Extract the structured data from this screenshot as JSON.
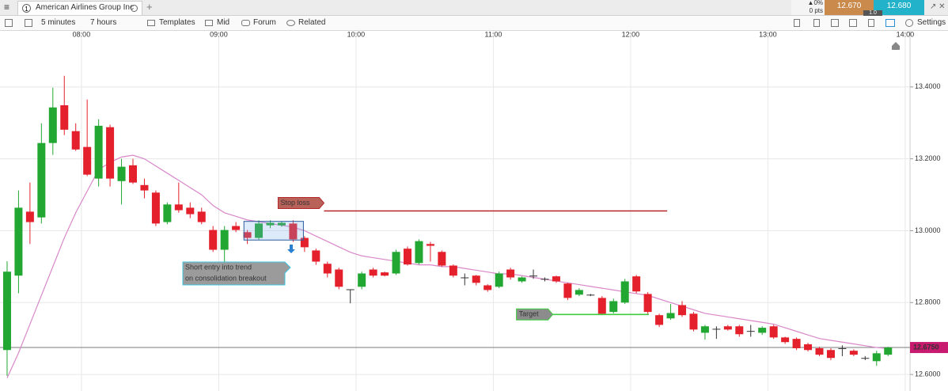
{
  "header": {
    "tab_number": "1",
    "tab_title": "American Airlines Group Inc",
    "add_tab": "+"
  },
  "quote": {
    "change": "0%",
    "points": "0 pts",
    "sell": "12.670",
    "buy": "12.680",
    "spread": "1.0"
  },
  "toolbar": {
    "interval": "5 minutes",
    "range": "7 hours",
    "templates": "Templates",
    "price_type": "Mid",
    "forum": "Forum",
    "related": "Related",
    "settings": "Settings"
  },
  "chart_data": {
    "type": "candlestick",
    "xlim": [
      444.4,
      842.1
    ],
    "xticks": [
      {
        "value": 480,
        "label": "08:00"
      },
      {
        "value": 540,
        "label": "09:00"
      },
      {
        "value": 600,
        "label": "10:00"
      },
      {
        "value": 660,
        "label": "11:00"
      },
      {
        "value": 720,
        "label": "12:00"
      },
      {
        "value": 780,
        "label": "13:00"
      },
      {
        "value": 840,
        "label": "14:00"
      }
    ],
    "ylim": [
      12.554,
      13.556
    ],
    "yticks": [
      {
        "value": 12.6,
        "label": "12.6000"
      },
      {
        "value": 12.8,
        "label": "12.8000"
      },
      {
        "value": 13.0,
        "label": "13.0000"
      },
      {
        "value": 13.2,
        "label": "13.2000"
      },
      {
        "value": 13.4,
        "label": "13.4000"
      }
    ],
    "grid": true,
    "up_color": "#22a732",
    "down_color": "#e3202b",
    "x": [
      445,
      450,
      455,
      460,
      465,
      470,
      475,
      480,
      485,
      490,
      495,
      500,
      505,
      510,
      515,
      520,
      525,
      530,
      535,
      540,
      545,
      550,
      555,
      560,
      565,
      570,
      575,
      580,
      585,
      590,
      595,
      600,
      605,
      610,
      615,
      620,
      625,
      630,
      635,
      640,
      645,
      650,
      655,
      660,
      665,
      670,
      675,
      680,
      685,
      690,
      695,
      700,
      705,
      710,
      715,
      720,
      725,
      730,
      735,
      740,
      745,
      750,
      755,
      760,
      765,
      770,
      775,
      780,
      785,
      790,
      795,
      800,
      805,
      810,
      815,
      820,
      825,
      830
    ],
    "open": [
      12.668,
      12.875,
      13.053,
      13.037,
      13.244,
      13.349,
      13.277,
      13.233,
      13.145,
      13.288,
      13.138,
      13.182,
      13.127,
      13.106,
      13.024,
      13.073,
      13.064,
      13.053,
      13.002,
      12.947,
      13.013,
      12.996,
      12.98,
      13.015,
      13.015,
      13.02,
      12.98,
      12.945,
      12.908,
      12.892,
      12.835,
      12.844,
      12.892,
      12.884,
      12.881,
      12.95,
      12.91,
      12.963,
      12.941,
      12.903,
      12.87,
      12.875,
      12.848,
      12.844,
      12.892,
      12.859,
      12.875,
      12.866,
      12.873,
      12.853,
      12.822,
      12.822,
      12.813,
      12.774,
      12.8,
      12.873,
      12.824,
      12.765,
      12.756,
      12.793,
      12.769,
      12.716,
      12.727,
      12.734,
      12.734,
      12.721,
      12.716,
      12.734,
      12.703,
      12.699,
      12.684,
      12.673,
      12.668,
      12.673,
      12.666,
      12.646,
      12.637,
      12.655
    ],
    "high": [
      12.915,
      13.112,
      13.134,
      13.299,
      13.398,
      13.431,
      13.299,
      13.365,
      13.31,
      13.295,
      13.2,
      13.2,
      13.145,
      13.112,
      13.079,
      13.134,
      13.079,
      13.064,
      13.013,
      13.013,
      13.024,
      13.002,
      13.029,
      13.029,
      13.026,
      13.029,
      12.985,
      12.95,
      12.914,
      12.897,
      12.837,
      12.886,
      12.897,
      12.886,
      12.947,
      12.956,
      12.976,
      12.969,
      12.945,
      12.906,
      12.881,
      12.877,
      12.851,
      12.886,
      12.897,
      12.873,
      12.892,
      12.87,
      12.875,
      12.855,
      12.84,
      12.824,
      12.818,
      12.811,
      12.866,
      12.877,
      12.829,
      12.769,
      12.796,
      12.804,
      12.774,
      12.738,
      12.734,
      12.738,
      12.738,
      12.738,
      12.734,
      12.738,
      12.705,
      12.703,
      12.688,
      12.677,
      12.673,
      12.681,
      12.67,
      12.651,
      12.666,
      12.677
    ],
    "low": [
      12.596,
      12.826,
      12.963,
      13.02,
      13.211,
      13.266,
      13.222,
      13.152,
      13.123,
      13.123,
      13.073,
      13.13,
      13.09,
      13.013,
      13.018,
      13.05,
      13.035,
      13.018,
      12.941,
      12.914,
      12.996,
      12.963,
      12.975,
      13.007,
      13.011,
      12.969,
      12.941,
      12.905,
      12.87,
      12.837,
      12.798,
      12.837,
      12.87,
      12.873,
      12.877,
      12.903,
      12.906,
      12.914,
      12.9,
      12.87,
      12.848,
      12.848,
      12.83,
      12.84,
      12.864,
      12.855,
      12.866,
      12.859,
      12.855,
      12.807,
      12.818,
      12.818,
      12.765,
      12.77,
      12.796,
      12.826,
      12.769,
      12.732,
      12.752,
      12.76,
      12.72,
      12.697,
      12.699,
      12.722,
      12.705,
      12.705,
      12.71,
      12.699,
      12.685,
      12.668,
      12.664,
      12.651,
      12.64,
      12.651,
      12.651,
      12.64,
      12.624,
      12.651
    ],
    "close": [
      12.886,
      13.064,
      13.024,
      13.244,
      13.343,
      13.281,
      13.226,
      13.156,
      13.292,
      13.145,
      13.178,
      13.134,
      13.112,
      13.02,
      13.073,
      13.057,
      13.046,
      13.024,
      12.947,
      13.002,
      13.002,
      12.98,
      13.02,
      13.022,
      13.022,
      12.976,
      12.954,
      12.914,
      12.881,
      12.844,
      12.837,
      12.881,
      12.875,
      12.875,
      12.941,
      12.906,
      12.971,
      12.958,
      12.903,
      12.875,
      12.868,
      12.855,
      12.835,
      12.881,
      12.87,
      12.87,
      12.873,
      12.864,
      12.859,
      12.813,
      12.835,
      12.82,
      12.769,
      12.804,
      12.859,
      12.831,
      12.774,
      12.738,
      12.771,
      12.765,
      12.725,
      12.734,
      12.725,
      12.725,
      12.712,
      12.719,
      12.73,
      12.703,
      12.69,
      12.673,
      12.668,
      12.655,
      12.646,
      12.671,
      12.655,
      12.644,
      12.659,
      12.675
    ],
    "moving_average": {
      "color": "#d987c9",
      "values": [
        12.59,
        12.66,
        12.74,
        12.82,
        12.9,
        12.98,
        13.05,
        13.11,
        13.17,
        13.19,
        13.205,
        13.21,
        13.2,
        13.18,
        13.16,
        13.14,
        13.12,
        13.1,
        13.07,
        13.05,
        13.04,
        13.03,
        13.025,
        13.02,
        13.015,
        13.01,
        13.0,
        12.985,
        12.97,
        12.955,
        12.94,
        12.93,
        12.925,
        12.92,
        12.915,
        12.91,
        12.905,
        12.905,
        12.9,
        12.9,
        12.895,
        12.89,
        12.885,
        12.88,
        12.88,
        12.875,
        12.87,
        12.865,
        12.86,
        12.855,
        12.85,
        12.845,
        12.84,
        12.835,
        12.83,
        12.825,
        12.82,
        12.81,
        12.8,
        12.79,
        12.78,
        12.77,
        12.765,
        12.76,
        12.755,
        12.75,
        12.745,
        12.74,
        12.73,
        12.72,
        12.71,
        12.7,
        12.695,
        12.69,
        12.685,
        12.68,
        12.675,
        12.672
      ]
    },
    "annotations": [
      {
        "text": "Stop loss",
        "value": 13.055,
        "x": [
          586,
          736
        ],
        "color": "#b3262a"
      },
      {
        "text": "Target",
        "value": 12.767,
        "x": [
          686,
          728
        ],
        "color": "#3fcc3f"
      },
      {
        "text": [
          "Short entry into trend",
          "on consolidation breakout"
        ]
      }
    ],
    "consolidation_box": {
      "x": [
        551,
        577
      ],
      "y": [
        12.974,
        13.026
      ]
    },
    "last_price": {
      "value": 12.675,
      "label": "12.6750"
    }
  }
}
